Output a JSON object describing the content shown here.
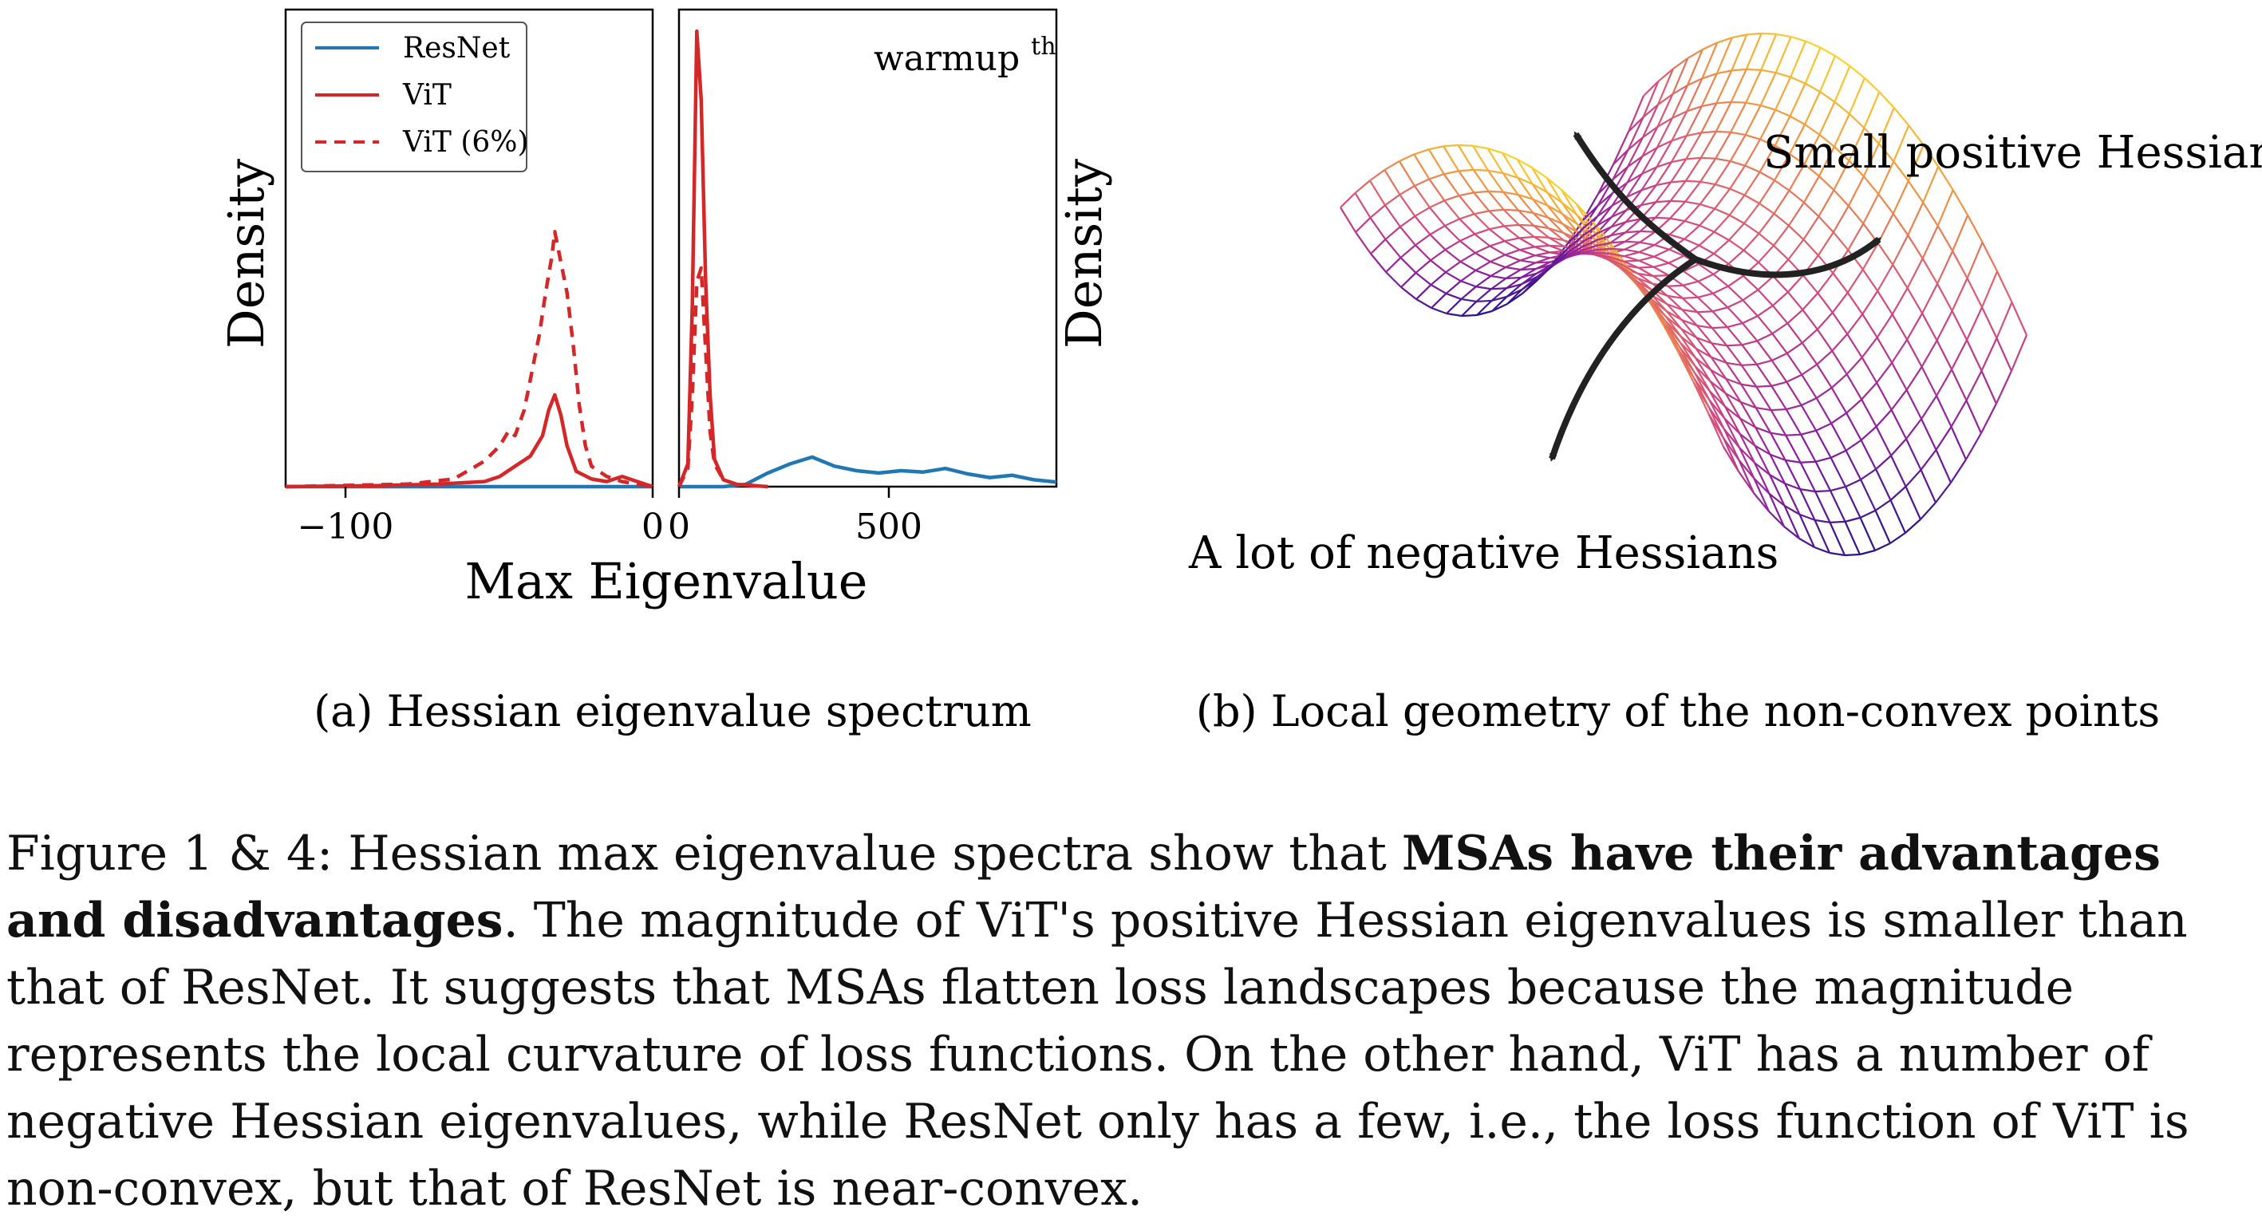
{
  "figure": {
    "panel_a": {
      "caption": "(a) Hessian eigenvalue spectrum",
      "xlabel": "Max Eigenvalue",
      "ylabel": "Density",
      "left_ticks": [
        "−100",
        "0"
      ],
      "right_ticks": [
        "0",
        "500"
      ],
      "right_title": "warmup",
      "right_title_sup": "th",
      "legend": [
        {
          "label": "ResNet",
          "color": "#1f77b4",
          "style": "solid"
        },
        {
          "label": "ViT",
          "color": "#d62728",
          "style": "solid"
        },
        {
          "label": "ViT (6%)",
          "color": "#d62728",
          "style": "dashed"
        }
      ]
    },
    "panel_b": {
      "caption": "(b) Local geometry of the non-convex points",
      "annotation_top": "Small positive Hessians",
      "annotation_bottom": "A lot of negative Hessians"
    }
  },
  "chart_data": [
    {
      "type": "line",
      "panel": "left",
      "xlabel": "Max Eigenvalue",
      "ylabel": "Density",
      "xlim": [
        -120,
        0
      ],
      "series": [
        {
          "name": "ResNet",
          "x": [
            -120,
            -60,
            -20,
            0
          ],
          "values": [
            0,
            0,
            0,
            0
          ]
        },
        {
          "name": "ViT",
          "x": [
            -120,
            -90,
            -70,
            -55,
            -50,
            -45,
            -40,
            -36,
            -34,
            -32,
            -30,
            -28,
            -25,
            -20,
            -15,
            -10,
            -5,
            0
          ],
          "values": [
            0,
            0.002,
            0.005,
            0.01,
            0.02,
            0.04,
            0.06,
            0.1,
            0.15,
            0.18,
            0.14,
            0.08,
            0.03,
            0.015,
            0.01,
            0.02,
            0.01,
            0
          ]
        },
        {
          "name": "ViT (6%)",
          "x": [
            -120,
            -80,
            -65,
            -55,
            -50,
            -47,
            -45,
            -42,
            -40,
            -37,
            -35,
            -33,
            -32,
            -30,
            -28,
            -26,
            -24,
            -22,
            -20,
            -15,
            -10,
            0
          ],
          "values": [
            0,
            0.005,
            0.015,
            0.05,
            0.08,
            0.11,
            0.1,
            0.15,
            0.21,
            0.3,
            0.38,
            0.45,
            0.5,
            0.44,
            0.38,
            0.28,
            0.16,
            0.08,
            0.04,
            0.02,
            0.01,
            0
          ]
        }
      ]
    },
    {
      "type": "line",
      "panel": "right",
      "title": "warmup^th",
      "xlim": [
        0,
        850
      ],
      "series": [
        {
          "name": "ResNet",
          "x": [
            0,
            100,
            150,
            200,
            250,
            300,
            350,
            400,
            450,
            500,
            550,
            600,
            650,
            700,
            750,
            800,
            850
          ],
          "values": [
            0,
            0,
            0.005,
            0.03,
            0.05,
            0.065,
            0.045,
            0.035,
            0.03,
            0.035,
            0.032,
            0.04,
            0.028,
            0.02,
            0.025,
            0.015,
            0.01
          ]
        },
        {
          "name": "ViT",
          "x": [
            0,
            20,
            30,
            40,
            50,
            60,
            70,
            80,
            100,
            130,
            200
          ],
          "values": [
            0,
            0.05,
            0.4,
            1.0,
            0.85,
            0.45,
            0.2,
            0.06,
            0.015,
            0.005,
            0
          ]
        },
        {
          "name": "ViT (6%)",
          "x": [
            0,
            20,
            30,
            40,
            50,
            60,
            70,
            80,
            100,
            130,
            200
          ],
          "values": [
            0,
            0.04,
            0.2,
            0.45,
            0.48,
            0.3,
            0.12,
            0.05,
            0.015,
            0.005,
            0
          ]
        }
      ]
    }
  ],
  "caption": {
    "prefix": "Figure 1 & 4: Hessian max eigenvalue spectra show that ",
    "bold": "MSAs have their advantages and disadvantages",
    "rest": ". The magnitude of ViT's positive Hessian eigenvalues is smaller than that of ResNet. It suggests that MSAs flatten loss landscapes because the magnitude represents the local curvature of loss functions. On the other hand, ViT has a number of negative Hessian eigenvalues, while ResNet only has a few, i.e., the loss function of ViT is non-convex, but that of ResNet is near-convex."
  }
}
